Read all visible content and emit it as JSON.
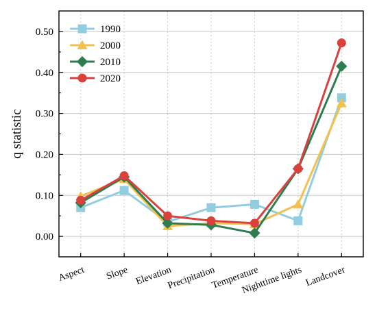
{
  "chart_data": {
    "type": "line",
    "title": "",
    "xlabel": "",
    "ylabel": "q statistic",
    "categories": [
      "Aspect",
      "Slope",
      "Elevation",
      "Precipitation",
      "Temperature",
      "Nighttime lights",
      "Landcover"
    ],
    "ylim": [
      -0.05,
      0.55
    ],
    "yticks": [
      0.0,
      0.1,
      0.2,
      0.3,
      0.4,
      0.5
    ],
    "ytick_labels": [
      "0.00",
      "0.10",
      "0.20",
      "0.30",
      "0.40",
      "0.50"
    ],
    "grid": true,
    "legend": "top-left",
    "series": [
      {
        "name": "1990",
        "color": "#92cddf",
        "marker": "square",
        "values": [
          0.07,
          0.112,
          0.035,
          0.07,
          0.078,
          0.038,
          0.338
        ]
      },
      {
        "name": "2000",
        "color": "#f2c14e",
        "marker": "triangle",
        "values": [
          0.098,
          0.14,
          0.025,
          0.032,
          0.03,
          0.078,
          0.325
        ]
      },
      {
        "name": "2010",
        "color": "#2e7d4f",
        "marker": "diamond",
        "values": [
          0.082,
          0.145,
          0.032,
          0.028,
          0.008,
          0.165,
          0.415
        ]
      },
      {
        "name": "2020",
        "color": "#d9413c",
        "marker": "circle",
        "values": [
          0.088,
          0.148,
          0.05,
          0.038,
          0.032,
          0.165,
          0.472
        ]
      }
    ]
  }
}
